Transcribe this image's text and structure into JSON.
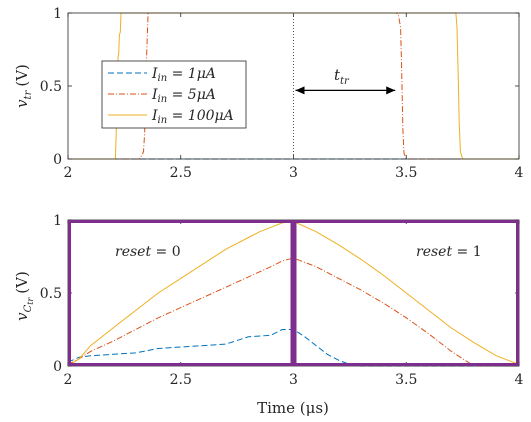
{
  "colors": {
    "series_1uA": "#0072BD",
    "series_5uA": "#D95319",
    "series_100uA": "#EDB120",
    "reset_box": "#7E2F8E",
    "axes": "#262626"
  },
  "chart_data": [
    {
      "id": "top",
      "type": "line",
      "ylabel_main": "v",
      "ylabel_sub": "tr",
      "ylabel_unit": "(V)",
      "xlim": [
        2,
        4
      ],
      "ylim": [
        0,
        1
      ],
      "xticks": [
        2,
        2.5,
        3,
        3.5,
        4
      ],
      "xtick_labels": [
        "2",
        "2.5",
        "3",
        "3.5",
        "4"
      ],
      "yticks": [
        0,
        0.5,
        1
      ],
      "ytick_labels": [
        "0",
        "0.5",
        "1"
      ],
      "grid": false,
      "legend_placement": "center-left",
      "legend": [
        {
          "name_main": "I",
          "name_sub": "in",
          "name_rest": " = 1μA",
          "style": "dashed"
        },
        {
          "name_main": "I",
          "name_sub": "in",
          "name_rest": " = 5μA",
          "style": "dashdot"
        },
        {
          "name_main": "I",
          "name_sub": "in",
          "name_rest": " = 100μA",
          "style": "solid"
        }
      ],
      "series": [
        {
          "name": "I_in = 1μA",
          "style": "dashed",
          "x": [
            2,
            4
          ],
          "y": [
            0,
            0
          ]
        },
        {
          "name": "I_in = 5μA",
          "style": "dashdot",
          "x": [
            2,
            2.315,
            2.325,
            2.335,
            2.34,
            2.345,
            2.355,
            3.455,
            3.465,
            3.475,
            3.48,
            3.485,
            3.49,
            3.5,
            4
          ],
          "y": [
            0,
            0,
            0.02,
            0.05,
            0.18,
            0.55,
            1,
            1,
            0.99,
            0.9,
            0.6,
            0.2,
            0.04,
            0,
            0
          ]
        },
        {
          "name": "I_in = 100μA",
          "style": "solid",
          "x": [
            2,
            2.21,
            2.215,
            2.218,
            2.222,
            2.225,
            2.228,
            2.232,
            2.235,
            2.24,
            3.72,
            3.725,
            3.73,
            3.735,
            3.74,
            3.75,
            4
          ],
          "y": [
            0,
            0,
            0.25,
            0.28,
            0.7,
            0.72,
            0.85,
            0.87,
            1,
            1,
            1,
            0.9,
            0.6,
            0.25,
            0.05,
            0,
            0
          ]
        }
      ],
      "annotation": {
        "label_main": "t",
        "label_sub": "tr",
        "arrow_x_start": 3.0,
        "arrow_x_end": 3.46,
        "arrow_y": 0.47,
        "vline_x": 3.0
      }
    },
    {
      "id": "bottom",
      "type": "line",
      "xlabel": "Time (μs)",
      "ylabel_main": "v",
      "ylabel_sub": "C",
      "ylabel_subsub": "tr",
      "ylabel_unit": "(V)",
      "xlim": [
        2,
        4
      ],
      "ylim": [
        0,
        1
      ],
      "xticks": [
        2,
        2.5,
        3,
        3.5,
        4
      ],
      "xtick_labels": [
        "2",
        "2.5",
        "3",
        "3.5",
        "4"
      ],
      "yticks": [
        0,
        0.5,
        1
      ],
      "ytick_labels": [
        "0",
        "0.5",
        "1"
      ],
      "grid": false,
      "series": [
        {
          "name": "I_in = 1μA",
          "style": "dashed",
          "x": [
            2,
            2.02,
            2.05,
            2.1,
            2.2,
            2.3,
            2.4,
            2.5,
            2.6,
            2.7,
            2.8,
            2.9,
            2.95,
            3.0,
            3.05,
            3.1,
            3.15,
            3.2,
            3.25,
            3.3,
            3.35,
            4
          ],
          "y": [
            0.03,
            0.04,
            0.06,
            0.07,
            0.08,
            0.09,
            0.12,
            0.13,
            0.14,
            0.15,
            0.2,
            0.21,
            0.25,
            0.25,
            0.2,
            0.14,
            0.08,
            0.04,
            0.01,
            0.0,
            0,
            0
          ]
        },
        {
          "name": "I_in = 5μA",
          "style": "dashdot",
          "x": [
            2,
            2.05,
            2.1,
            2.2,
            2.3,
            2.4,
            2.5,
            2.6,
            2.7,
            2.8,
            2.9,
            2.95,
            3.0,
            3.1,
            3.2,
            3.3,
            3.4,
            3.5,
            3.6,
            3.7,
            3.78,
            3.82,
            4
          ],
          "y": [
            0.01,
            0.05,
            0.1,
            0.17,
            0.25,
            0.33,
            0.4,
            0.47,
            0.54,
            0.61,
            0.68,
            0.72,
            0.74,
            0.68,
            0.6,
            0.52,
            0.43,
            0.33,
            0.22,
            0.1,
            0.02,
            0.0,
            0
          ]
        },
        {
          "name": "I_in = 100μA",
          "style": "solid",
          "x": [
            2,
            2.02,
            2.05,
            2.1,
            2.2,
            2.3,
            2.4,
            2.5,
            2.6,
            2.7,
            2.8,
            2.85,
            2.9,
            2.95,
            3.0,
            3.1,
            3.2,
            3.3,
            3.4,
            3.5,
            3.6,
            3.7,
            3.8,
            3.9,
            4.0
          ],
          "y": [
            0.0,
            0.02,
            0.05,
            0.14,
            0.26,
            0.38,
            0.5,
            0.6,
            0.7,
            0.8,
            0.88,
            0.92,
            0.95,
            0.98,
            0.99,
            0.92,
            0.83,
            0.73,
            0.62,
            0.5,
            0.38,
            0.26,
            0.16,
            0.07,
            0.01
          ]
        }
      ],
      "reset_boxes": [
        {
          "label_lhs": "reset",
          "label_rest": " = 0",
          "x0": 2.0,
          "x1": 3.0,
          "label_x": 2.33,
          "label_y": 0.83
        },
        {
          "label_lhs": "reset",
          "label_rest": " = 1",
          "x0": 3.0,
          "x1": 4.0,
          "label_x": 3.7,
          "label_y": 0.83
        }
      ]
    }
  ]
}
